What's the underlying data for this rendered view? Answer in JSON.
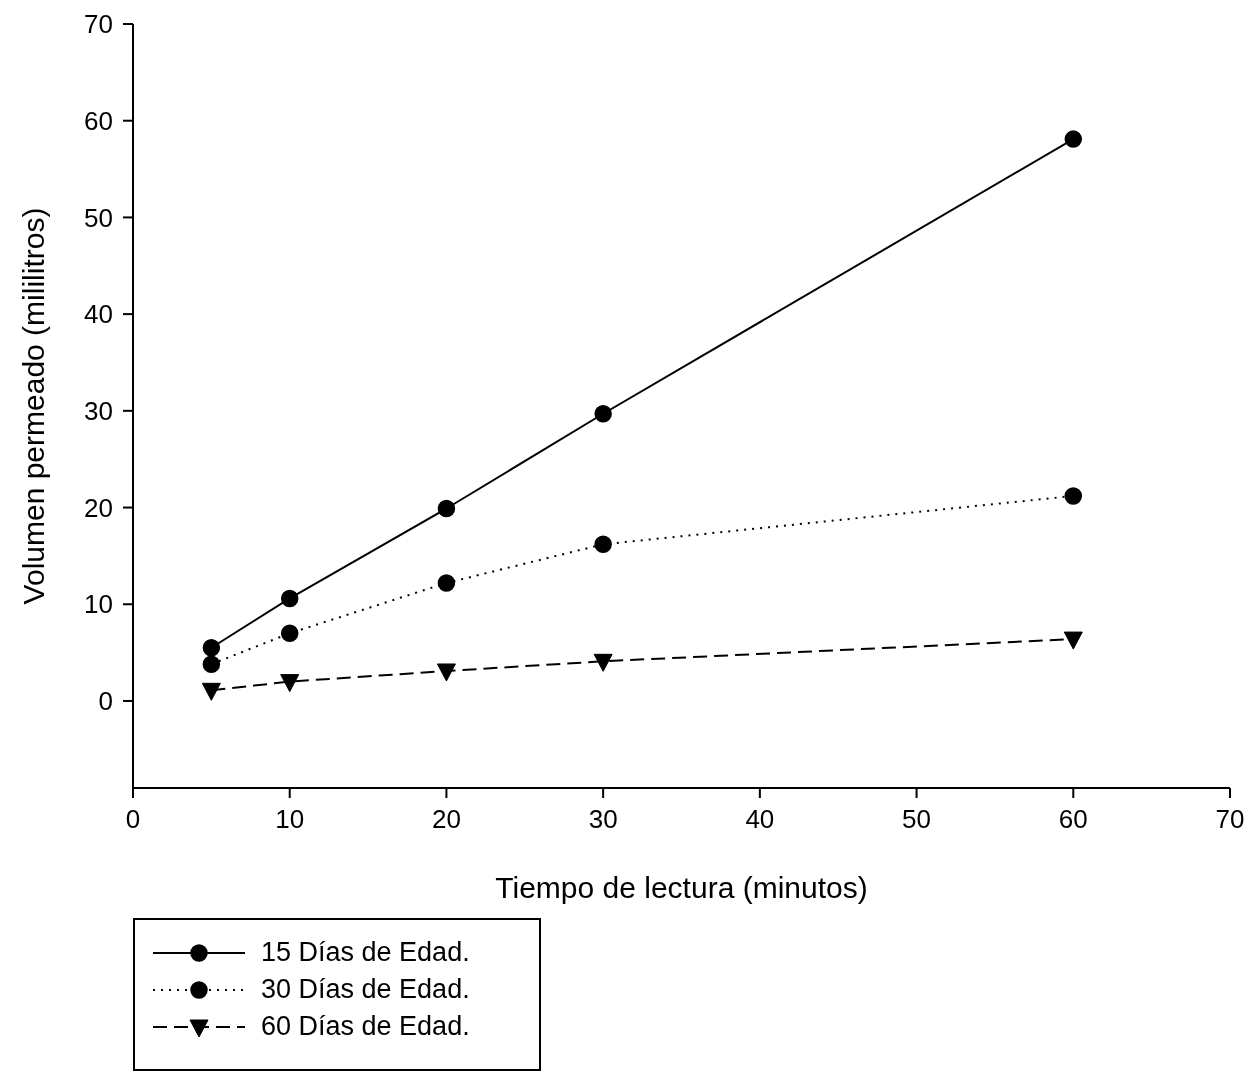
{
  "chart_data": {
    "type": "line",
    "xlabel": "Tiempo de lectura (minutos)",
    "ylabel": "Volumen permeado (mililitros)",
    "x": [
      5,
      10,
      20,
      30,
      60
    ],
    "series": [
      {
        "name": "15 Días de Edad.",
        "color": "#000000",
        "marker": "circle",
        "line_style": "solid",
        "values": [
          5.5,
          10.6,
          19.9,
          29.7,
          58.1
        ]
      },
      {
        "name": "30 Días de Edad.",
        "color": "#000000",
        "marker": "circle",
        "line_style": "dotted",
        "values": [
          3.8,
          7.0,
          12.2,
          16.2,
          21.2
        ]
      },
      {
        "name": "60 Días de Edad.",
        "color": "#000000",
        "marker": "triangle",
        "line_style": "dashed",
        "values": [
          1.1,
          2.0,
          3.1,
          4.1,
          6.4
        ]
      }
    ],
    "xlim": [
      0,
      70
    ],
    "xticks": [
      0,
      10,
      20,
      30,
      40,
      50,
      60,
      70
    ],
    "ylim": [
      -9,
      70
    ],
    "yticks": [
      0,
      10,
      20,
      30,
      40,
      50,
      60,
      70
    ],
    "grid": false,
    "legend": "bottom left"
  }
}
